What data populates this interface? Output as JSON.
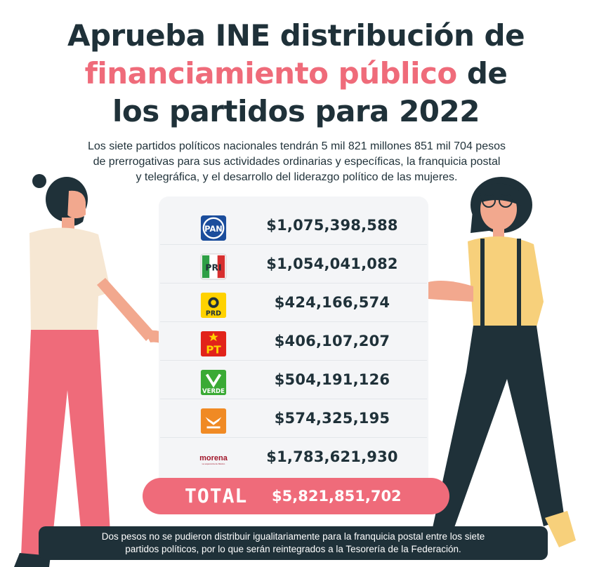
{
  "header": {
    "title_line1": "Aprueba INE distribución de",
    "title_line2_highlight": "financiamiento público",
    "title_line2_rest": " de",
    "title_line3": "los partidos para 2022",
    "subtitle_line1": "Los siete partidos políticos nacionales tendrán 5 mil 821 millones 851 mil 704 pesos",
    "subtitle_line2": "de prerrogativas para sus actividades ordinarias y específicas, la franquicia postal",
    "subtitle_line3": "y telegráfica, y el desarrollo del liderazgo político de las mujeres."
  },
  "parties": [
    {
      "logo_text": "PAN",
      "amount": "$1,075,398,588",
      "color": "#1b4d9c"
    },
    {
      "logo_text": "PRI",
      "amount": "$1,054,041,082",
      "color": "#d72f2f"
    },
    {
      "logo_text": "PRD",
      "amount": "$424,166,574",
      "color": "#ffd200"
    },
    {
      "logo_text": "PT",
      "amount": "$406,107,207",
      "color": "#e2231a"
    },
    {
      "logo_text": "VERDE",
      "amount": "$504,191,126",
      "color": "#3aaa35"
    },
    {
      "logo_text": "",
      "amount": "$574,325,195",
      "color": "#f08a24"
    },
    {
      "logo_text": "morena",
      "logo_subtext": "La esperanza de México",
      "amount": "$1,783,621,930",
      "color": "#a1172b"
    }
  ],
  "total": {
    "label": "TOTAL",
    "amount": "$5,821,851,702"
  },
  "note": {
    "line1": "Dos pesos no se pudieron distribuir igualitariamente para la franquicia postal entre los siete",
    "line2": "partidos políticos, por lo que serán reintegrados a la Tesorería de la Federación."
  },
  "colors": {
    "accent": "#ef6b7a",
    "dark": "#1f3139",
    "card": "#f4f5f7"
  }
}
